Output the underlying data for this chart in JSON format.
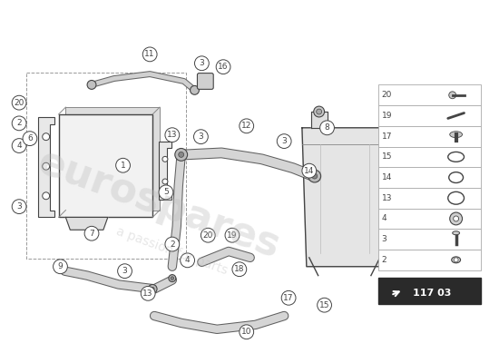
{
  "bg_color": "#ffffff",
  "diagram_number": "117 03",
  "parts_list_numbers": [
    20,
    19,
    17,
    15,
    14,
    13,
    4,
    3,
    2
  ],
  "watermark_text1": "eurospares",
  "watermark_text2": "a passion for parts",
  "fig_width": 5.5,
  "fig_height": 4.0,
  "dpi": 100
}
